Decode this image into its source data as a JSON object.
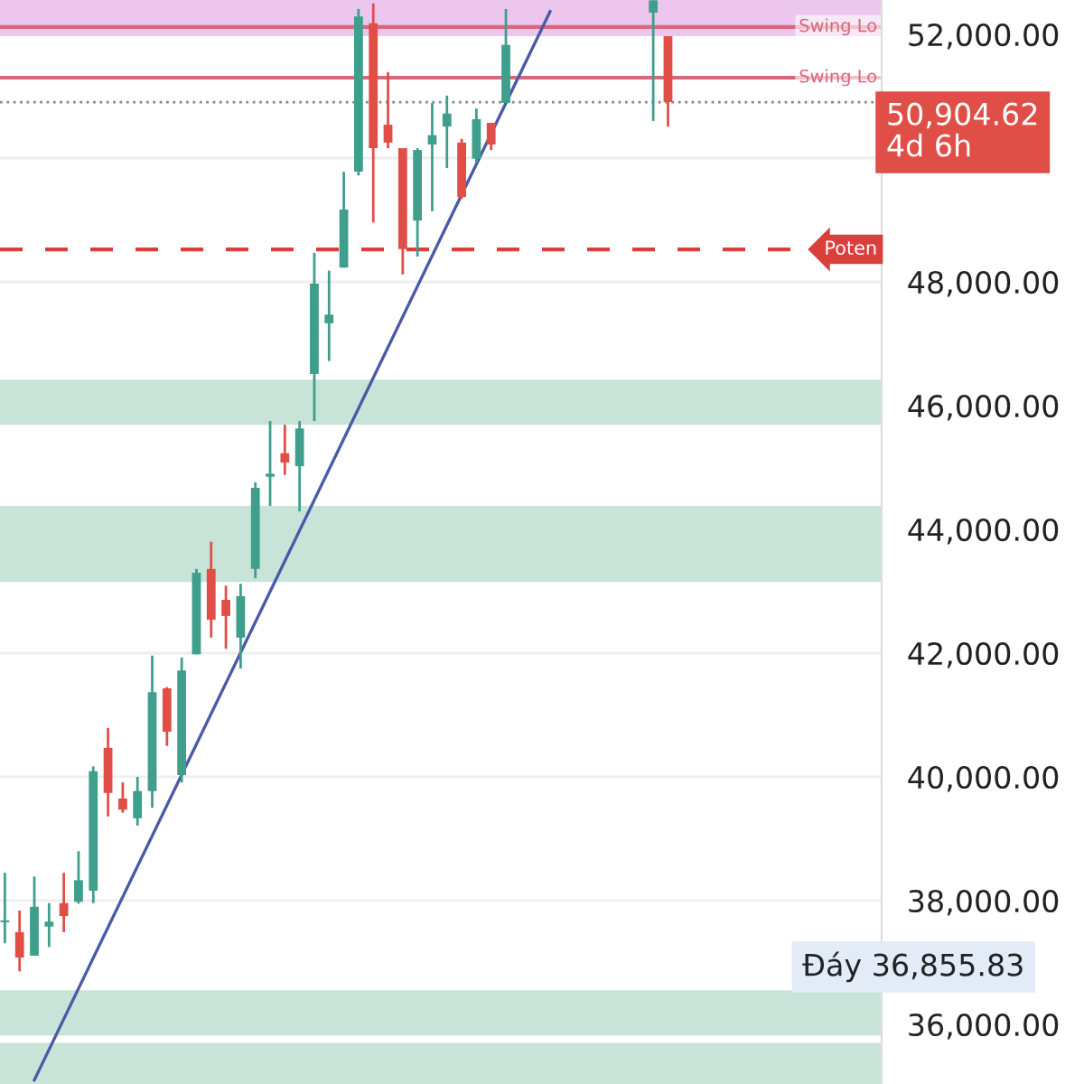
{
  "chart_data": {
    "type": "candlestick",
    "categories": [
      null,
      null,
      null,
      null,
      null,
      null,
      null,
      null,
      null,
      null,
      null,
      null,
      null,
      null,
      null,
      null,
      null,
      null,
      null,
      null,
      null,
      null,
      null,
      null,
      null,
      null,
      null,
      null,
      null,
      null,
      null,
      null,
      null,
      null,
      null,
      null,
      null,
      null,
      null,
      null,
      null,
      null,
      null,
      null,
      null,
      null,
      null,
      null,
      null,
      null,
      null,
      null,
      null,
      null,
      null,
      null,
      null,
      null,
      null,
      null
    ],
    "ohlc": [
      [
        37650,
        38450,
        37310,
        37680
      ],
      [
        37490,
        37840,
        36856,
        37080
      ],
      [
        37110,
        38390,
        37110,
        37900
      ],
      [
        37580,
        37960,
        37250,
        37660
      ],
      [
        37960,
        38450,
        37490,
        37750
      ],
      [
        37980,
        38800,
        37950,
        38330
      ],
      [
        38160,
        40170,
        37960,
        40090
      ],
      [
        40470,
        40790,
        39360,
        39740
      ],
      [
        39650,
        39910,
        39420,
        39470
      ],
      [
        39330,
        40000,
        39210,
        39770
      ],
      [
        39770,
        41960,
        39500,
        41370
      ],
      [
        41430,
        41450,
        40500,
        40730
      ],
      [
        40030,
        41930,
        39910,
        41720
      ],
      [
        41980,
        43360,
        41980,
        43300
      ],
      [
        43360,
        43800,
        42250,
        42540
      ],
      [
        42860,
        43090,
        42070,
        42600
      ],
      [
        42250,
        43120,
        41750,
        42920
      ],
      [
        43360,
        44760,
        43210,
        44670
      ],
      [
        44850,
        45750,
        44380,
        44900
      ],
      [
        45230,
        45690,
        44880,
        45080
      ],
      [
        45020,
        45750,
        44290,
        45630
      ],
      [
        46510,
        48470,
        45750,
        47970
      ],
      [
        47330,
        48180,
        46720,
        47470
      ],
      [
        48230,
        49780,
        48230,
        49170
      ],
      [
        49780,
        52410,
        49720,
        52290
      ],
      [
        52180,
        52500,
        48960,
        50160
      ],
      [
        50540,
        51390,
        50160,
        50250
      ],
      [
        50160,
        50160,
        48120,
        48530
      ],
      [
        48990,
        50160,
        48410,
        50130
      ],
      [
        50220,
        50890,
        49140,
        50370
      ],
      [
        50510,
        51010,
        49840,
        50720
      ],
      [
        50250,
        50310,
        49340,
        49370
      ],
      [
        49990,
        50800,
        49930,
        50630
      ],
      [
        50570,
        50570,
        50130,
        50220
      ],
      [
        50890,
        52410,
        50890,
        51830
      ],
      null,
      null,
      null,
      null,
      null,
      null,
      null,
      null,
      null,
      [
        52350,
        52550,
        50600,
        52550
      ],
      [
        51970,
        51970,
        50510,
        50905
      ],
      null,
      null,
      null,
      null,
      null,
      null,
      null,
      null,
      null,
      null,
      null,
      null,
      null,
      null
    ],
    "colors": [
      "#3f9e8c",
      "#e04f47",
      "#3f9e8c",
      "#3f9e8c",
      "#e04f47",
      "#3f9e8c",
      "#3f9e8c",
      "#e04f47",
      "#e04f47",
      "#3f9e8c",
      "#3f9e8c",
      "#e04f47",
      "#3f9e8c",
      "#3f9e8c",
      "#e04f47",
      "#e04f47",
      "#3f9e8c",
      "#3f9e8c",
      "#3f9e8c",
      "#e04f47",
      "#3f9e8c",
      "#3f9e8c",
      "#3f9e8c",
      "#3f9e8c",
      "#3f9e8c",
      "#e04f47",
      "#e04f47",
      "#e04f47",
      "#3f9e8c",
      "#3f9e8c",
      "#3f9e8c",
      "#e04f47",
      "#3f9e8c",
      "#e04f47",
      "#3f9e8c",
      null,
      null,
      null,
      null,
      null,
      null,
      null,
      null,
      null,
      "#3f9e8c",
      "#e04f47",
      null,
      null,
      null,
      null,
      null,
      null,
      null,
      null,
      null,
      null,
      null,
      null,
      null,
      null
    ],
    "series": [
      {
        "type": "line",
        "values": [
          null,
          null,
          35100,
          null,
          null,
          null,
          null,
          null,
          null,
          null,
          null,
          null,
          null,
          null,
          null,
          null,
          null,
          null,
          null,
          null,
          null,
          null,
          null,
          null,
          null,
          null,
          null,
          null,
          null,
          null,
          null,
          null,
          null,
          null,
          null,
          null,
          null,
          52370,
          null,
          null,
          null,
          null,
          null,
          null,
          null,
          null,
          null,
          null,
          null,
          null,
          null,
          null,
          null,
          null,
          null,
          null,
          null,
          null,
          null,
          null
        ],
        "color": "#4a5aa8"
      }
    ],
    "ylim": [
      35036,
      52555
    ],
    "yticks": [
      {
        "value": 36000,
        "label": "36,000.00"
      },
      {
        "value": 38000,
        "label": "38,000.00"
      },
      {
        "value": 40000,
        "label": "40,000.00"
      },
      {
        "value": 42000,
        "label": "42,000.00"
      },
      {
        "value": 44000,
        "label": "44,000.00"
      },
      {
        "value": 46000,
        "label": "46,000.00"
      },
      {
        "value": 48000,
        "label": "48,000.00"
      },
      {
        "value": 50000,
        "label": null
      },
      {
        "value": 52000,
        "label": "52,000.00"
      }
    ],
    "tick_labels": "y",
    "grid": "y",
    "bands": [
      {
        "axis": "y",
        "from": 45690,
        "to": 46420,
        "color": "#c8e4d9"
      },
      {
        "axis": "y",
        "from": 43150,
        "to": 44380,
        "color": "#c8e4d9"
      },
      {
        "axis": "y",
        "from": 35820,
        "to": 36550,
        "color": "#c8e4d9"
      },
      {
        "axis": "y",
        "from": 35036,
        "to": 35700,
        "color": "#c8e4d9"
      },
      {
        "axis": "y",
        "from": 51970,
        "to": 52555,
        "color": "#ecc6ee"
      }
    ],
    "ref_lines": [
      {
        "axis": "y",
        "value": 52120,
        "label": "Swing Lo",
        "color": "#d9667a",
        "line_style": "solid"
      },
      {
        "axis": "y",
        "value": 51300,
        "label": "Swing Lo",
        "color": "#d9667a",
        "line_style": "solid"
      },
      {
        "axis": "y",
        "value": 48525,
        "label": "Poten",
        "color": "#d9403c",
        "line_style": "dashed"
      },
      {
        "axis": "y",
        "value": 50905,
        "label": "50,904.62\n4d 6h",
        "color": "#888888",
        "line_style": "dotted"
      }
    ],
    "annotations": [
      "Đáy 36,855.83"
    ]
  }
}
